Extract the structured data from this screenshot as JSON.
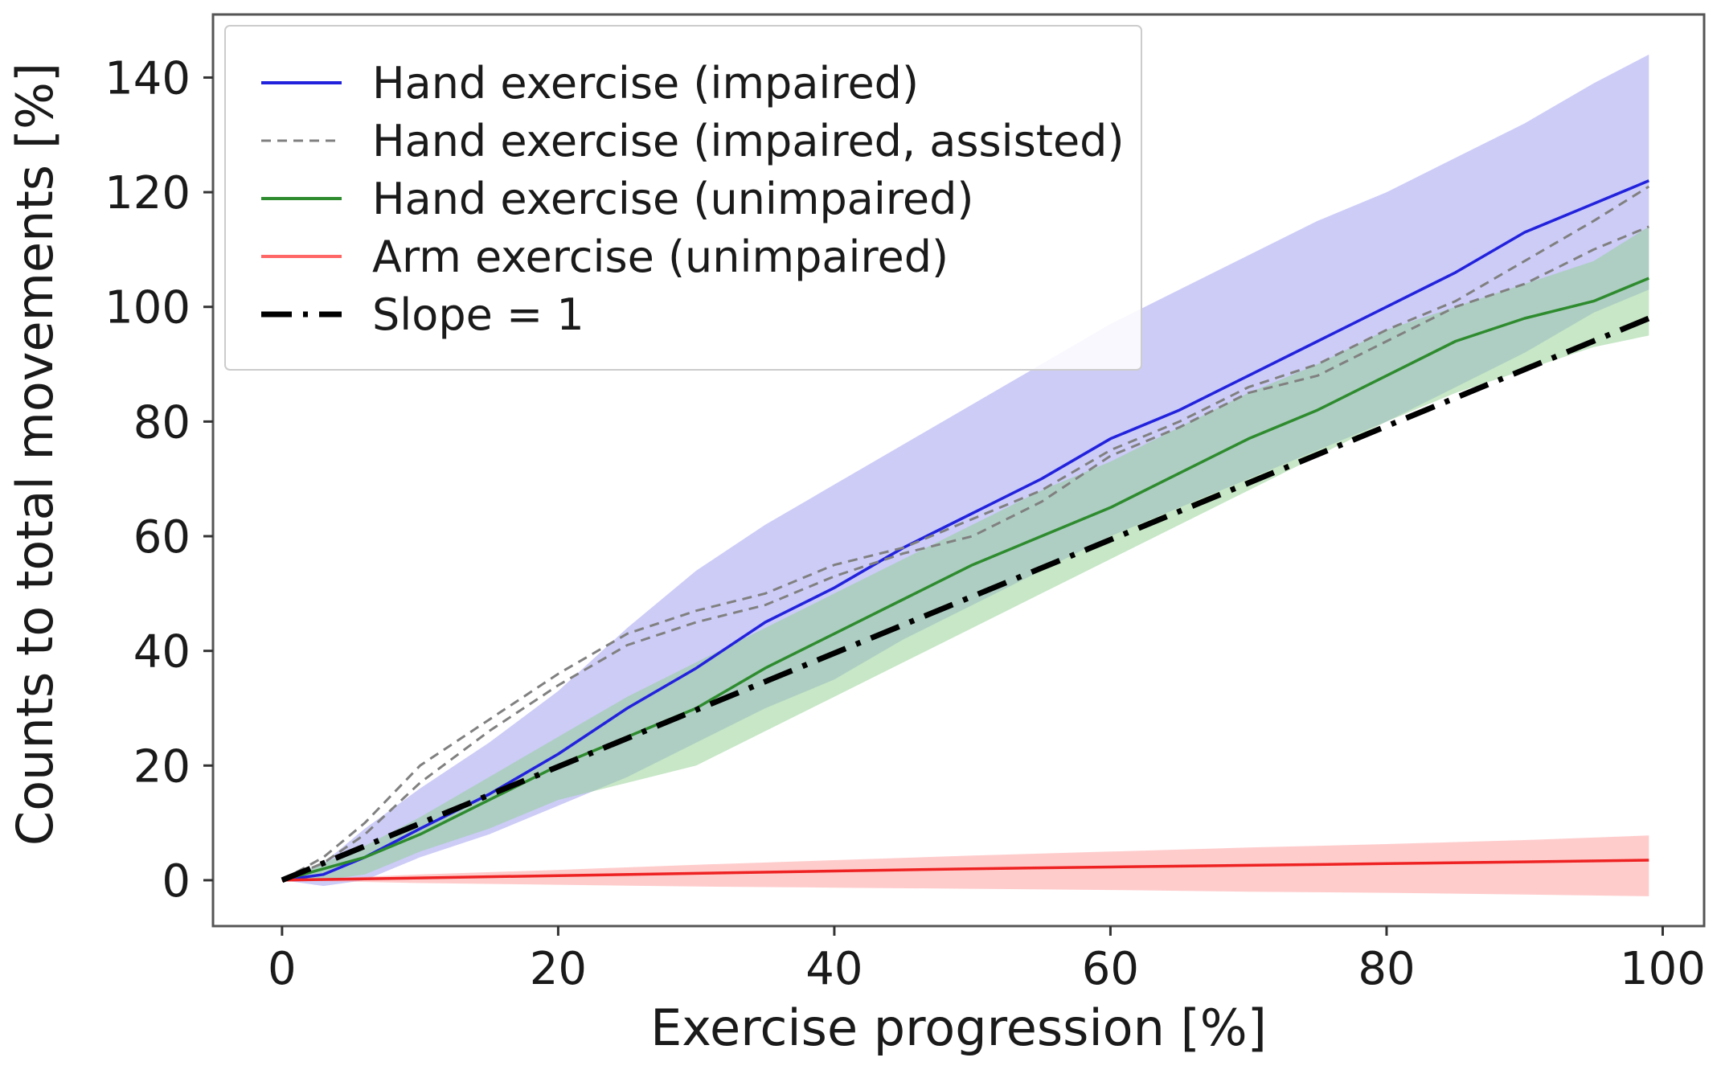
{
  "chart_data": {
    "type": "line",
    "title": "",
    "xlabel": "Exercise progression [%]",
    "ylabel": "Counts to total movements [%]",
    "xlim": [
      -5,
      103
    ],
    "ylim": [
      -8,
      151
    ],
    "xticks": [
      0,
      20,
      40,
      60,
      80,
      100
    ],
    "yticks": [
      0,
      20,
      40,
      60,
      80,
      100,
      120,
      140
    ],
    "grid": false,
    "legend_position": "top-left",
    "series": [
      {
        "name": "Hand exercise (impaired)",
        "style": "solid",
        "color": "#2222dd",
        "x": [
          0,
          3,
          6,
          10,
          15,
          20,
          25,
          30,
          35,
          40,
          45,
          50,
          55,
          60,
          65,
          70,
          75,
          80,
          85,
          90,
          95,
          99
        ],
        "y": [
          0,
          1,
          4,
          9,
          15,
          22,
          30,
          37,
          45,
          51,
          58,
          64,
          70,
          77,
          82,
          88,
          94,
          100,
          106,
          113,
          118,
          122
        ],
        "upper": [
          0,
          3,
          9,
          16,
          24,
          33,
          44,
          54,
          62,
          69,
          76,
          83,
          90,
          97,
          103,
          109,
          115,
          120,
          126,
          132,
          139,
          144
        ],
        "lower": [
          0,
          -1,
          0,
          4,
          8,
          13,
          18,
          24,
          30,
          35,
          42,
          48,
          54,
          60,
          65,
          70,
          75,
          80,
          86,
          92,
          99,
          103
        ]
      },
      {
        "name": "Hand exercise (impaired, assisted)",
        "style": "dashed",
        "color": "#808080",
        "x": [
          0,
          3,
          6,
          10,
          15,
          20,
          25,
          30,
          35,
          40,
          45,
          50,
          55,
          60,
          65,
          70,
          75,
          80,
          85,
          90,
          95,
          99
        ],
        "y": [
          0,
          4,
          10,
          20,
          28,
          36,
          43,
          47,
          50,
          55,
          58,
          63,
          68,
          75,
          80,
          86,
          90,
          96,
          101,
          108,
          115,
          121
        ]
      },
      {
        "name": "Hand exercise (impaired, assisted)",
        "style": "dashed",
        "color": "#808080",
        "x": [
          0,
          3,
          6,
          10,
          15,
          20,
          25,
          30,
          35,
          40,
          45,
          50,
          55,
          60,
          65,
          70,
          75,
          80,
          85,
          90,
          95,
          99
        ],
        "y": [
          0,
          3,
          8,
          17,
          26,
          34,
          41,
          45,
          48,
          53,
          57,
          60,
          66,
          74,
          79,
          85,
          88,
          94,
          100,
          104,
          110,
          114
        ]
      },
      {
        "name": "Hand exercise (unimpaired)",
        "style": "solid",
        "color": "#2e8b2e",
        "x": [
          0,
          3,
          6,
          10,
          15,
          20,
          25,
          30,
          35,
          40,
          45,
          50,
          55,
          60,
          65,
          70,
          75,
          80,
          85,
          90,
          95,
          99
        ],
        "y": [
          0,
          2,
          4,
          8,
          14,
          20,
          25,
          30,
          37,
          43,
          49,
          55,
          60,
          65,
          71,
          77,
          82,
          88,
          94,
          98,
          101,
          105
        ],
        "upper": [
          0,
          3,
          6,
          11,
          18,
          25,
          32,
          38,
          44,
          50,
          56,
          62,
          68,
          73,
          79,
          85,
          90,
          96,
          100,
          104,
          108,
          114
        ],
        "lower": [
          0,
          0,
          1,
          5,
          9,
          14,
          17,
          20,
          26,
          32,
          38,
          44,
          50,
          56,
          62,
          68,
          74,
          80,
          85,
          89,
          93,
          95
        ]
      },
      {
        "name": "Arm exercise (unimpaired)",
        "style": "solid",
        "color": "#ee2222",
        "x": [
          0,
          10,
          20,
          30,
          40,
          50,
          60,
          70,
          80,
          90,
          99
        ],
        "y": [
          0,
          0.4,
          0.8,
          1.2,
          1.6,
          2.0,
          2.3,
          2.6,
          2.9,
          3.2,
          3.5
        ],
        "upper": [
          0,
          1.0,
          1.8,
          2.7,
          3.5,
          4.3,
          5.0,
          5.7,
          6.3,
          7.0,
          7.8
        ],
        "lower": [
          0,
          -0.5,
          -0.8,
          -1.1,
          -1.3,
          -1.5,
          -1.7,
          -2.0,
          -2.2,
          -2.5,
          -2.8
        ]
      },
      {
        "name": "Slope = 1",
        "style": "dashdot",
        "color": "#000000",
        "x": [
          0,
          99
        ],
        "y": [
          0,
          98
        ]
      }
    ]
  },
  "legend": [
    {
      "label": "Hand exercise (impaired)",
      "color": "#2222dd",
      "style": "solid"
    },
    {
      "label": "Hand exercise (impaired, assisted)",
      "color": "#808080",
      "style": "dashed"
    },
    {
      "label": "Hand exercise (unimpaired)",
      "color": "#2e8b2e",
      "style": "solid"
    },
    {
      "label": "Arm exercise (unimpaired)",
      "color": "#ff6666",
      "style": "solid"
    },
    {
      "label": "Slope = 1",
      "color": "#000000",
      "style": "dashdot"
    }
  ]
}
